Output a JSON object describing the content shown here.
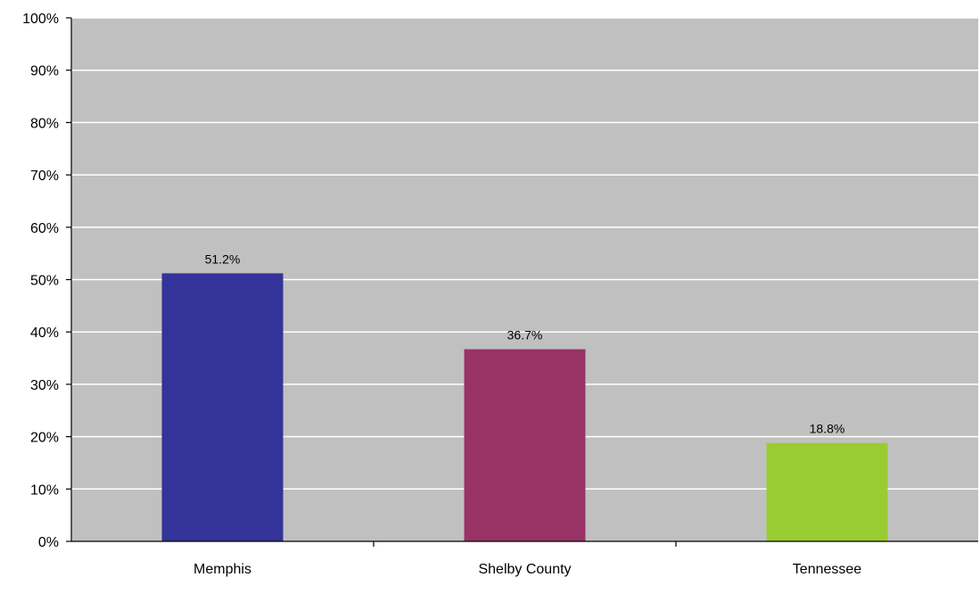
{
  "chart_data": {
    "type": "bar",
    "categories": [
      "Memphis",
      "Shelby County",
      "Tennessee"
    ],
    "values": [
      51.2,
      36.7,
      18.8
    ],
    "value_labels": [
      "51.2%",
      "36.7%",
      "18.8%"
    ],
    "colors": [
      "#333399",
      "#993366",
      "#99cc33"
    ],
    "ylim": [
      0,
      100
    ],
    "yticks": [
      0,
      10,
      20,
      30,
      40,
      50,
      60,
      70,
      80,
      90,
      100
    ],
    "ytick_labels": [
      "0%",
      "10%",
      "20%",
      "30%",
      "40%",
      "50%",
      "60%",
      "70%",
      "80%",
      "90%",
      "100%"
    ],
    "grid": true,
    "plot_background": "#c0c0c0",
    "gridline_color": "#ffffff",
    "axis_color": "#000000",
    "legend": "none"
  }
}
